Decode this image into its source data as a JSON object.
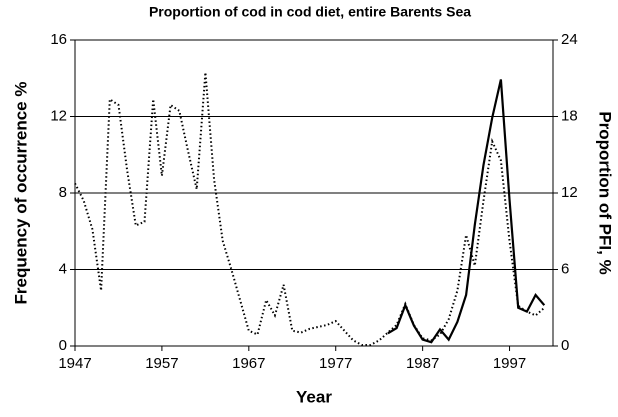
{
  "chart_data": {
    "type": "line",
    "title": "Proportion of cod in cod diet, entire Barents Sea",
    "x_label": "Year",
    "y_label": "Frequency of occurrence %",
    "y2_label": "Proportion of PFI, %",
    "x": [
      1947,
      1948,
      1949,
      1950,
      1951,
      1952,
      1953,
      1954,
      1955,
      1956,
      1957,
      1958,
      1959,
      1960,
      1961,
      1962,
      1963,
      1964,
      1965,
      1966,
      1967,
      1968,
      1969,
      1970,
      1971,
      1972,
      1973,
      1974,
      1975,
      1976,
      1977,
      1978,
      1979,
      1980,
      1981,
      1982,
      1983,
      1984,
      1985,
      1986,
      1987,
      1988,
      1989,
      1990,
      1991,
      1992,
      1993,
      1994,
      1995,
      1996,
      1997,
      1998,
      1999,
      2000,
      2001
    ],
    "series": [
      {
        "color": "#000000",
        "dash": "dotted",
        "axis": "y",
        "values": [
          8.5,
          7.6,
          6.1,
          2.9,
          12.9,
          12.6,
          9.2,
          6.3,
          6.5,
          12.9,
          8.9,
          12.6,
          12.3,
          10.2,
          8.2,
          14.3,
          8.7,
          5.5,
          4.0,
          2.4,
          0.8,
          0.6,
          2.4,
          1.6,
          3.2,
          0.8,
          0.7,
          0.9,
          1.0,
          1.1,
          1.3,
          0.8,
          0.3,
          0.05,
          0.05,
          0.3,
          0.7,
          1.1,
          2.2,
          1.1,
          0.4,
          0.3,
          0.6,
          1.4,
          2.9,
          5.8,
          4.2,
          7.6,
          10.7,
          9.7,
          5.5,
          2.1,
          1.8,
          1.6,
          2.0
        ]
      },
      {
        "color": "#000000",
        "dash": "solid",
        "axis": "y2",
        "values": [
          null,
          null,
          null,
          null,
          null,
          null,
          null,
          null,
          null,
          null,
          null,
          null,
          null,
          null,
          null,
          null,
          null,
          null,
          null,
          null,
          null,
          null,
          null,
          null,
          null,
          null,
          null,
          null,
          null,
          null,
          null,
          null,
          null,
          null,
          null,
          null,
          1.0,
          1.4,
          3.2,
          1.6,
          0.5,
          0.3,
          1.3,
          0.5,
          1.9,
          4.0,
          9.5,
          14.2,
          17.9,
          20.9,
          11.5,
          3.0,
          2.7,
          4.0,
          3.2
        ]
      }
    ],
    "xlim": [
      1947,
      2002
    ],
    "xticks": [
      1947,
      1957,
      1967,
      1977,
      1987,
      1997
    ],
    "ylim": [
      0,
      16
    ],
    "yticks": [
      0,
      4,
      8,
      12,
      16
    ],
    "y2lim": [
      0,
      24
    ],
    "y2ticks": [
      0,
      6,
      12,
      18,
      24
    ],
    "grid": true
  }
}
